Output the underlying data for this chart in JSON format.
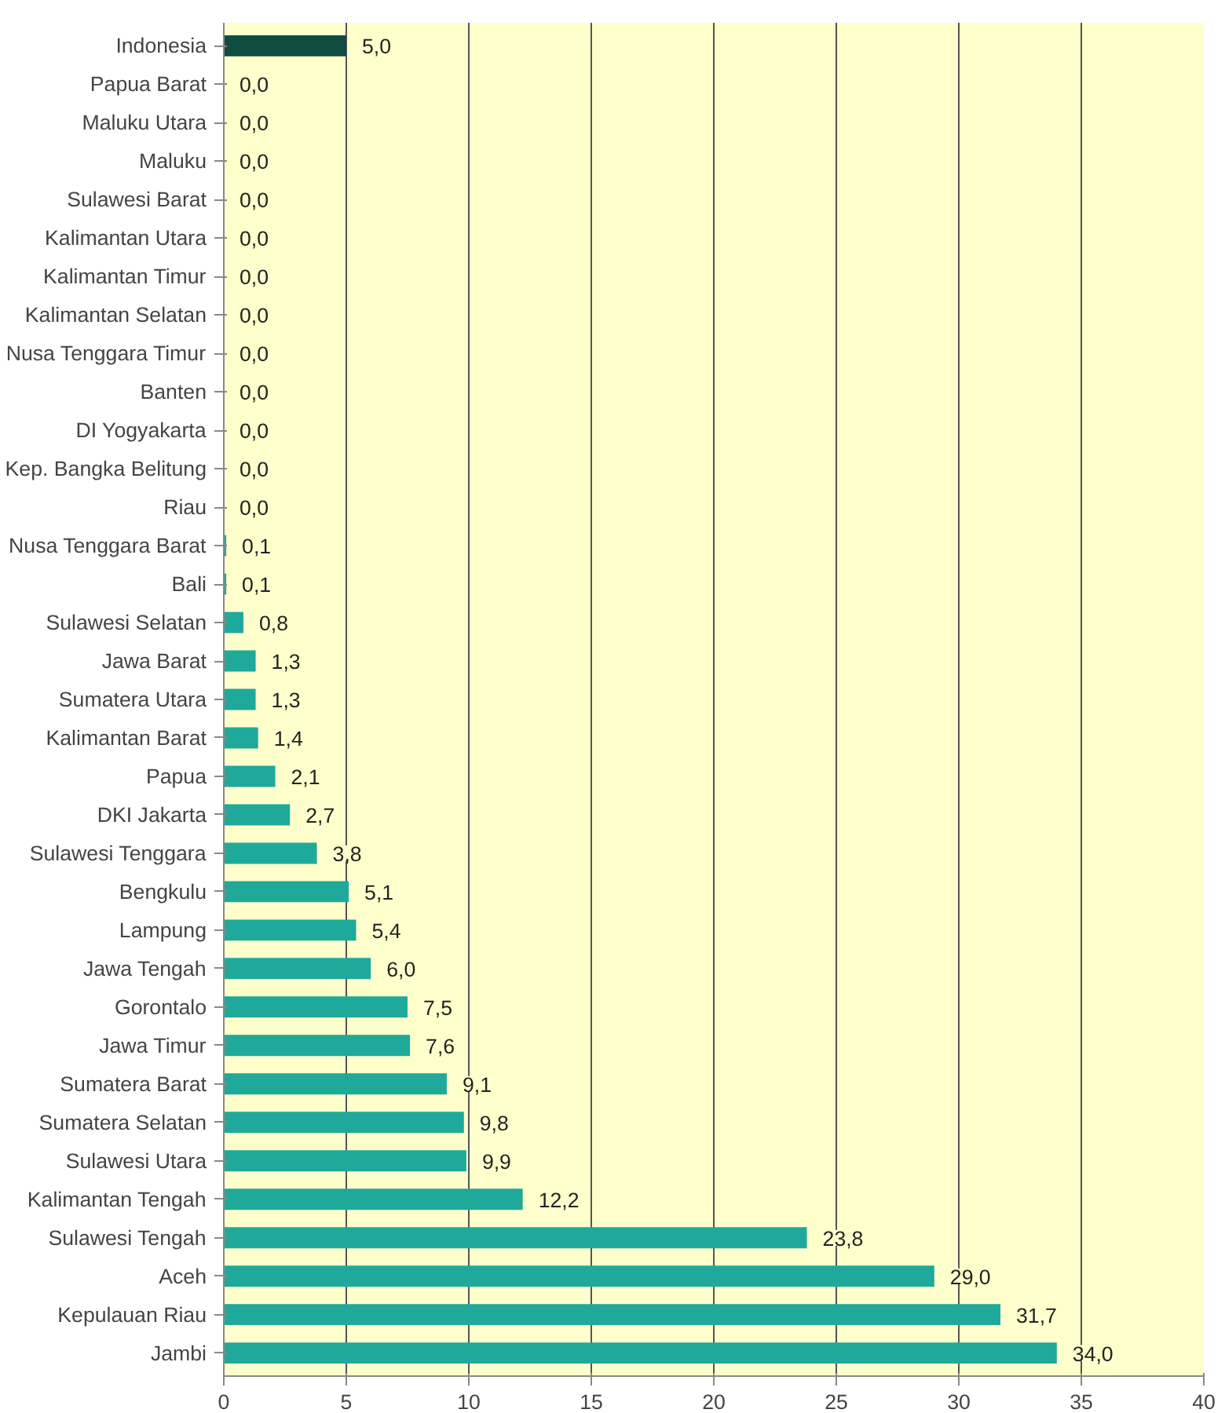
{
  "chart_data": {
    "type": "bar",
    "orientation": "horizontal",
    "categories": [
      "Indonesia",
      "Papua Barat",
      "Maluku Utara",
      "Maluku",
      "Sulawesi Barat",
      "Kalimantan Utara",
      "Kalimantan Timur",
      "Kalimantan Selatan",
      "Nusa Tenggara Timur",
      "Banten",
      "DI Yogyakarta",
      "Kep. Bangka Belitung",
      "Riau",
      "Nusa Tenggara Barat",
      "Bali",
      "Sulawesi Selatan",
      "Jawa Barat",
      "Sumatera Utara",
      "Kalimantan Barat",
      "Papua",
      "DKI Jakarta",
      "Sulawesi Tenggara",
      "Bengkulu",
      "Lampung",
      "Jawa Tengah",
      "Gorontalo",
      "Jawa Timur",
      "Sumatera Barat",
      "Sumatera Selatan",
      "Sulawesi Utara",
      "Kalimantan Tengah",
      "Sulawesi Tengah",
      "Aceh",
      "Kepulauan Riau",
      "Jambi"
    ],
    "values": [
      5.0,
      0.0,
      0.0,
      0.0,
      0.0,
      0.0,
      0.0,
      0.0,
      0.0,
      0.0,
      0.0,
      0.0,
      0.0,
      0.1,
      0.1,
      0.8,
      1.3,
      1.3,
      1.4,
      2.1,
      2.7,
      3.8,
      5.1,
      5.4,
      6.0,
      7.5,
      7.6,
      9.1,
      9.8,
      9.9,
      12.2,
      23.8,
      29.0,
      31.7,
      34.0
    ],
    "value_labels": [
      "5,0",
      "0,0",
      "0,0",
      "0,0",
      "0,0",
      "0,0",
      "0,0",
      "0,0",
      "0,0",
      "0,0",
      "0,0",
      "0,0",
      "0,0",
      "0,1",
      "0,1",
      "0,8",
      "1,3",
      "1,3",
      "1,4",
      "2,1",
      "2,7",
      "3,8",
      "5,1",
      "5,4",
      "6,0",
      "7,5",
      "7,6",
      "9,1",
      "9,8",
      "9,9",
      "12,2",
      "23,8",
      "29,0",
      "31,7",
      "34,0"
    ],
    "colors": [
      "#0e4d40",
      "#1fa99a",
      "#1fa99a",
      "#1fa99a",
      "#1fa99a",
      "#1fa99a",
      "#1fa99a",
      "#1fa99a",
      "#1fa99a",
      "#1fa99a",
      "#1fa99a",
      "#1fa99a",
      "#1fa99a",
      "#1fa99a",
      "#1fa99a",
      "#1fa99a",
      "#1fa99a",
      "#1fa99a",
      "#1fa99a",
      "#1fa99a",
      "#1fa99a",
      "#1fa99a",
      "#1fa99a",
      "#1fa99a",
      "#1fa99a",
      "#1fa99a",
      "#1fa99a",
      "#1fa99a",
      "#1fa99a",
      "#1fa99a",
      "#1fa99a",
      "#1fa99a",
      "#1fa99a",
      "#1fa99a",
      "#1fa99a"
    ],
    "xlim": [
      0,
      40
    ],
    "xticks": [
      0,
      5,
      10,
      15,
      20,
      25,
      30,
      35,
      40
    ],
    "grid": "x"
  }
}
